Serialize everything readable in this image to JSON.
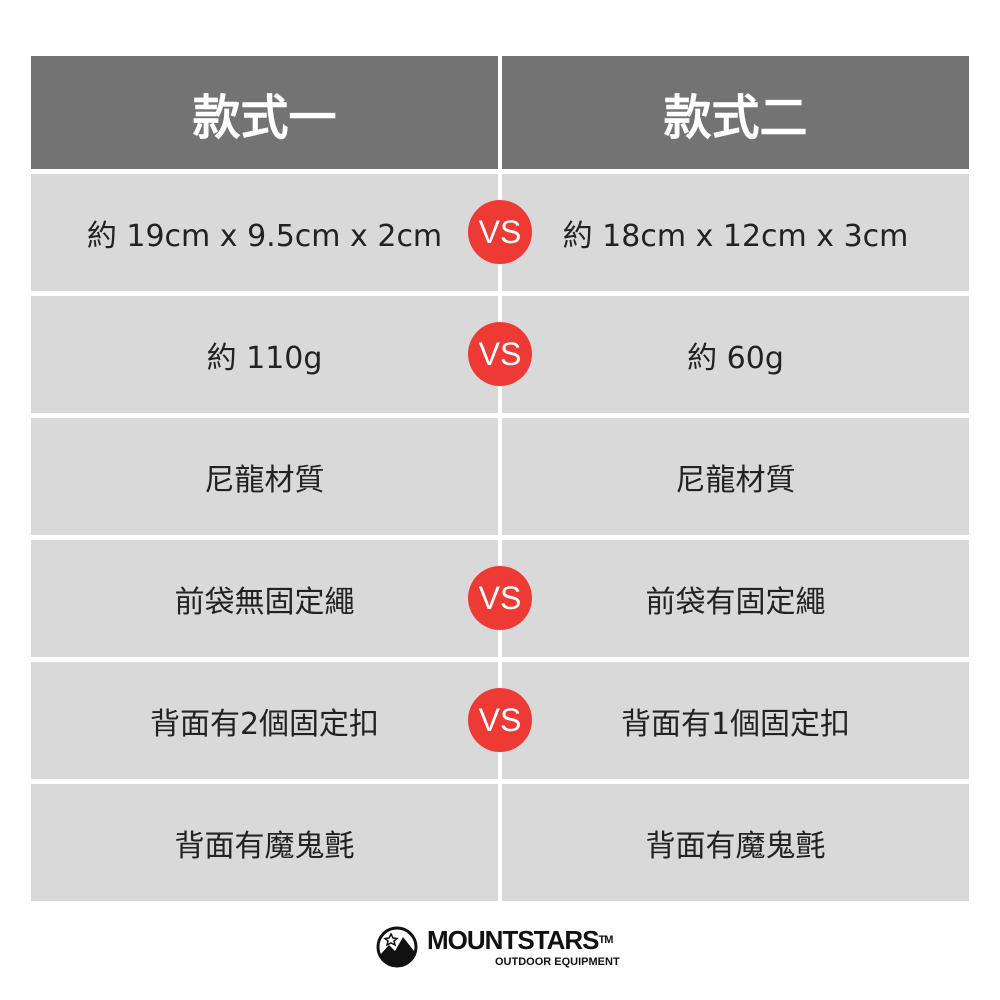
{
  "header": {
    "left": "款式一",
    "right": "款式二"
  },
  "rows": [
    {
      "left": "約 19cm x 9.5cm x 2cm",
      "right": "約 18cm x 12cm x 3cm",
      "vs": "VS"
    },
    {
      "left": "約 110g",
      "right": "約 60g",
      "vs": "VS"
    },
    {
      "left": "尼龍材質",
      "right": "尼龍材質",
      "vs": null
    },
    {
      "left": "前袋無固定繩",
      "right": "前袋有固定繩",
      "vs": "VS"
    },
    {
      "left": "背面有2個固定扣",
      "right": "背面有1個固定扣",
      "vs": "VS"
    },
    {
      "left": "背面有魔鬼氈",
      "right": "背面有魔鬼氈",
      "vs": null
    }
  ],
  "logo": {
    "brand": "MOUNTSTARS",
    "tm": "TM",
    "tagline": "OUTDOOR EQUIPMENT"
  },
  "colors": {
    "header_bg": "#737373",
    "row_bg": "#d9d9d9",
    "vs_badge": "#ee3a35"
  }
}
